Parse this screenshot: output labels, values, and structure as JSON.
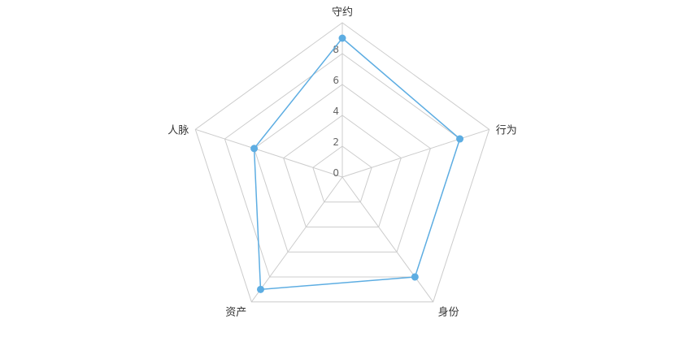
{
  "chart_data": {
    "type": "radar",
    "title": "",
    "axes": [
      "守约",
      "行为",
      "身份",
      "资产",
      "人脉"
    ],
    "tick_labels": [
      "0",
      "2",
      "4",
      "6",
      "8"
    ],
    "range": [
      0,
      10
    ],
    "tick_step": 2,
    "grid": true,
    "series": [
      {
        "values": [
          9,
          8,
          8,
          9,
          6
        ],
        "color": "#5dade2"
      }
    ]
  }
}
